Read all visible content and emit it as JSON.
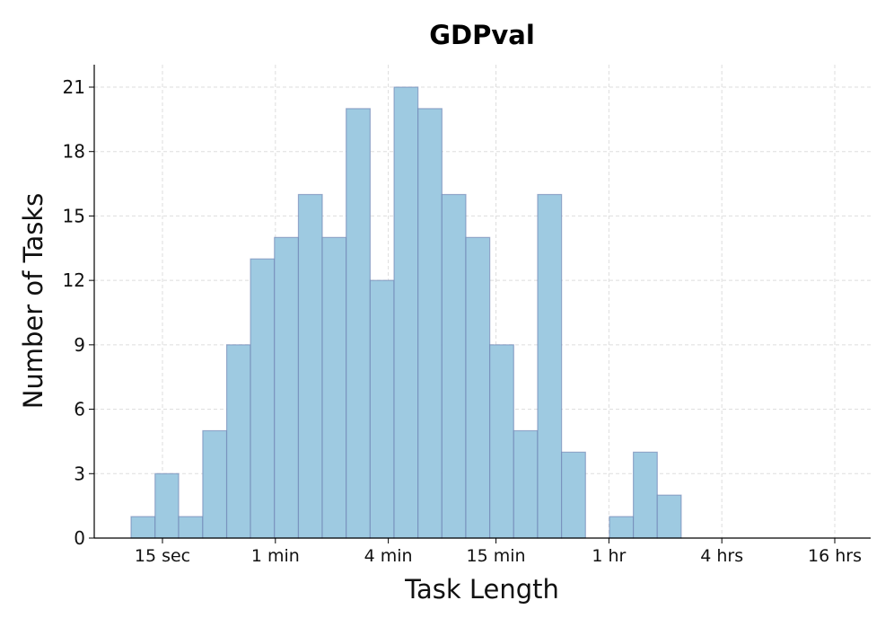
{
  "chart_data": {
    "type": "bar",
    "title": "GDPval",
    "xlabel": "Task Length",
    "ylabel": "Number of Tasks",
    "x_scale": "log",
    "x_ticks": [
      {
        "label": "15 sec",
        "seconds": 15
      },
      {
        "label": "1 min",
        "seconds": 60
      },
      {
        "label": "4 min",
        "seconds": 240
      },
      {
        "label": "15 min",
        "seconds": 900
      },
      {
        "label": "1 hr",
        "seconds": 3600
      },
      {
        "label": "4 hrs",
        "seconds": 14400
      },
      {
        "label": "16 hrs",
        "seconds": 57600
      }
    ],
    "y_ticks": [
      0,
      3,
      6,
      9,
      12,
      15,
      18,
      21
    ],
    "ylim": [
      0,
      22
    ],
    "grid": true,
    "bar_color": "#9ecae1",
    "bar_edge_color": "#6a7fb0",
    "grid_color": "#dddddd",
    "bins": [
      {
        "seconds_start": 10.2,
        "seconds_end": 13.7,
        "count": 1
      },
      {
        "seconds_start": 13.7,
        "seconds_end": 18.3,
        "count": 3
      },
      {
        "seconds_start": 18.3,
        "seconds_end": 24.6,
        "count": 1
      },
      {
        "seconds_start": 24.6,
        "seconds_end": 33.0,
        "count": 5
      },
      {
        "seconds_start": 33.0,
        "seconds_end": 44.2,
        "count": 9
      },
      {
        "seconds_start": 44.2,
        "seconds_end": 59.3,
        "count": 13
      },
      {
        "seconds_start": 59.3,
        "seconds_end": 79.6,
        "count": 14
      },
      {
        "seconds_start": 79.6,
        "seconds_end": 106.7,
        "count": 16
      },
      {
        "seconds_start": 106.7,
        "seconds_end": 143.1,
        "count": 14
      },
      {
        "seconds_start": 143.1,
        "seconds_end": 192.0,
        "count": 20
      },
      {
        "seconds_start": 192.0,
        "seconds_end": 257.6,
        "count": 12
      },
      {
        "seconds_start": 257.6,
        "seconds_end": 345.5,
        "count": 21
      },
      {
        "seconds_start": 345.5,
        "seconds_end": 463.5,
        "count": 20
      },
      {
        "seconds_start": 463.5,
        "seconds_end": 621.7,
        "count": 16
      },
      {
        "seconds_start": 621.7,
        "seconds_end": 834.0,
        "count": 14
      },
      {
        "seconds_start": 834.0,
        "seconds_end": 1118.7,
        "count": 9
      },
      {
        "seconds_start": 1118.7,
        "seconds_end": 1500.7,
        "count": 5
      },
      {
        "seconds_start": 1500.7,
        "seconds_end": 2013.0,
        "count": 16
      },
      {
        "seconds_start": 2013.0,
        "seconds_end": 2700.4,
        "count": 4
      },
      {
        "seconds_start": 2700.4,
        "seconds_end": 3622.4,
        "count": 0
      },
      {
        "seconds_start": 3622.4,
        "seconds_end": 4859.3,
        "count": 1
      },
      {
        "seconds_start": 4859.3,
        "seconds_end": 6518.4,
        "count": 4
      },
      {
        "seconds_start": 6518.4,
        "seconds_end": 8744.1,
        "count": 2
      }
    ]
  }
}
